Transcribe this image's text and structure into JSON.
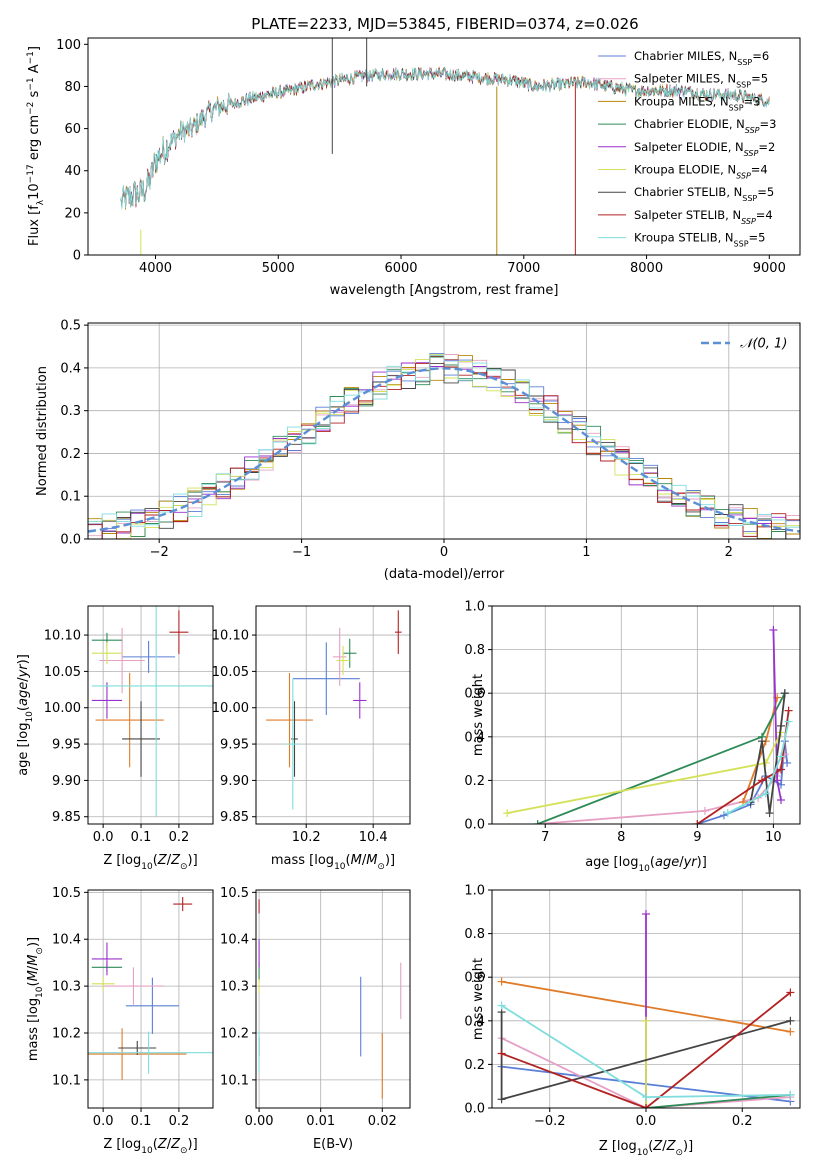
{
  "figure": {
    "title": "PLATE=2233, MJD=53845, FIBERID=0374, z=0.026"
  },
  "chart_data": [
    {
      "id": "spectrum",
      "type": "line",
      "title": "PLATE=2233, MJD=53845, FIBERID=0374, z=0.026",
      "xlabel": "wavelength [Angstrom, rest frame]",
      "ylabel": "Flux [f_λ 10^-17 erg cm^-2 s^-1 A^-1]",
      "xlim": [
        3450,
        9250
      ],
      "ylim": [
        0,
        103
      ],
      "xticks": [
        4000,
        5000,
        6000,
        7000,
        8000,
        9000
      ],
      "yticks": [
        0,
        20,
        40,
        60,
        80,
        100
      ],
      "grid": false,
      "legend_position": "top-right",
      "continuum_points": [
        [
          3720,
          25
        ],
        [
          3800,
          28
        ],
        [
          3900,
          30
        ],
        [
          3960,
          36
        ],
        [
          4000,
          45
        ],
        [
          4100,
          52
        ],
        [
          4200,
          58
        ],
        [
          4300,
          60
        ],
        [
          4400,
          66
        ],
        [
          4500,
          70
        ],
        [
          4700,
          73
        ],
        [
          4900,
          76
        ],
        [
          5100,
          78
        ],
        [
          5300,
          81
        ],
        [
          5500,
          83
        ],
        [
          5700,
          85
        ],
        [
          5900,
          86
        ],
        [
          6100,
          86
        ],
        [
          6300,
          86
        ],
        [
          6500,
          85
        ],
        [
          6700,
          84
        ],
        [
          6900,
          83
        ],
        [
          7100,
          80
        ],
        [
          7300,
          81
        ],
        [
          7500,
          82
        ],
        [
          7700,
          80
        ],
        [
          7900,
          78
        ],
        [
          8100,
          78
        ],
        [
          8300,
          78
        ],
        [
          8500,
          76
        ],
        [
          8700,
          76
        ],
        [
          8900,
          74
        ],
        [
          9000,
          73
        ]
      ],
      "series": [
        {
          "name": "Chabrier MILES, N_SSP=6",
          "color": "#5b7fd6"
        },
        {
          "name": "Salpeter MILES, N_SSP=5",
          "color": "#e6a0c4"
        },
        {
          "name": "Kroupa MILES, N_SSP=3",
          "color": "#b8860b"
        },
        {
          "name": "Chabrier ELODIE, N_SSP=3",
          "color": "#2e8b57"
        },
        {
          "name": "Salpeter ELODIE, N_SSP=2",
          "color": "#9932cc"
        },
        {
          "name": "Kroupa ELODIE, N_SSP=4",
          "color": "#d4e157"
        },
        {
          "name": "Chabrier STELIB, N_SSP=5",
          "color": "#444444"
        },
        {
          "name": "Salpeter STELIB, N_SSP=4",
          "color": "#b22222"
        },
        {
          "name": "Kroupa STELIB, N_SSP=5",
          "color": "#7fdddd"
        }
      ],
      "legend_labels": [
        {
          "base": "Chabrier MILES, N",
          "sub": "SSP",
          "tail": "=6"
        },
        {
          "base": "Salpeter MILES, N",
          "sub": "SSP",
          "tail": "=5"
        },
        {
          "base": "Kroupa MILES, N",
          "sub": "SSP",
          "tail": "=3"
        },
        {
          "base": "Chabrier ELODIE, N",
          "sub": "SSP",
          "tail": "=3"
        },
        {
          "base": "Salpeter ELODIE, N",
          "sub": "SSP",
          "tail": "=2"
        },
        {
          "base": "Kroupa ELODIE, N",
          "sub": "SSP",
          "tail": "=4"
        },
        {
          "base": "Chabrier STELIB, N",
          "sub": "SSP",
          "tail": "=5"
        },
        {
          "base": "Salpeter STELIB, N",
          "sub": "SSP",
          "tail": "=4"
        },
        {
          "base": "Kroupa STELIB, N",
          "sub": "SSP",
          "tail": "=5"
        }
      ],
      "spikes": [
        {
          "x": 3880,
          "y0": 0,
          "y1": 12,
          "color": "#d4e157"
        },
        {
          "x": 5440,
          "y0": 48,
          "y1": 103,
          "color": "#444444"
        },
        {
          "x": 5720,
          "y0": 80,
          "y1": 103,
          "color": "#444444"
        },
        {
          "x": 6780,
          "y0": 0,
          "y1": 80,
          "color": "#b8860b"
        },
        {
          "x": 7420,
          "y0": 0,
          "y1": 82,
          "color": "#b22222"
        }
      ]
    },
    {
      "id": "residuals",
      "type": "line",
      "xlabel": "(data-model)/error",
      "ylabel": "Normed distribution",
      "xlim": [
        -2.5,
        2.5
      ],
      "ylim": [
        0,
        0.505
      ],
      "xticks": [
        -2,
        -1,
        0,
        1,
        2
      ],
      "yticks": [
        0.0,
        0.1,
        0.2,
        0.3,
        0.4,
        0.5
      ],
      "grid": true,
      "legend_position": "top-right",
      "gaussian_label": "𝒩(0, 1)",
      "gaussian_color": "#5b8fd6",
      "bin_width": 0.1
    },
    {
      "id": "age_vs_Z",
      "type": "scatter",
      "xlabel": "Z [log10(Z/Z⊙)]",
      "ylabel": "age [log10(age/yr)]",
      "xlim": [
        -0.04,
        0.29
      ],
      "ylim": [
        9.84,
        10.14
      ],
      "xticks": [
        0.0,
        0.1,
        0.2
      ],
      "yticks": [
        9.85,
        9.9,
        9.95,
        10.0,
        10.05,
        10.1
      ],
      "grid": true,
      "points": [
        {
          "color": "#5b7fd6",
          "x": 0.12,
          "xerr": 0.07,
          "y": 10.07,
          "yerr": 0.022
        },
        {
          "color": "#e6a0c4",
          "x": 0.05,
          "xerr": 0.06,
          "y": 10.065,
          "yerr": 0.045
        },
        {
          "color": "#e07b29",
          "x": 0.07,
          "xerr": 0.09,
          "y": 9.983,
          "yerr": 0.065
        },
        {
          "color": "#2e8b57",
          "x": 0.01,
          "xerr": 0.04,
          "y": 10.093,
          "yerr": 0.01
        },
        {
          "color": "#9932cc",
          "x": 0.01,
          "xerr": 0.04,
          "y": 10.01,
          "yerr": 0.025
        },
        {
          "color": "#d4e157",
          "x": 0.01,
          "xerr": 0.04,
          "y": 10.075,
          "yerr": 0.015
        },
        {
          "color": "#444444",
          "x": 0.1,
          "xerr": 0.05,
          "y": 9.957,
          "yerr": 0.052
        },
        {
          "color": "#b22222",
          "x": 0.2,
          "xerr": 0.025,
          "y": 10.104,
          "yerr": 0.03
        },
        {
          "color": "#7fdddd",
          "x": 0.14,
          "xerr": 0.17,
          "y": 10.03,
          "yerr": 0.18
        }
      ]
    },
    {
      "id": "age_vs_mass",
      "type": "scatter",
      "xlabel": "mass [log10(M/M⊙)]",
      "ylabel": "",
      "xlim": [
        10.05,
        10.51
      ],
      "ylim": [
        9.84,
        10.14
      ],
      "xticks": [
        10.2,
        10.4
      ],
      "yticks": [
        9.85,
        9.9,
        9.95,
        10.0,
        10.05,
        10.1
      ],
      "grid": true,
      "points": [
        {
          "color": "#5b7fd6",
          "x": 10.26,
          "xerr": 0.1,
          "y": 10.04,
          "yerr": 0.05
        },
        {
          "color": "#e6a0c4",
          "x": 10.3,
          "xerr": 0.02,
          "y": 10.07,
          "yerr": 0.04
        },
        {
          "color": "#e07b29",
          "x": 10.15,
          "xerr": 0.07,
          "y": 9.983,
          "yerr": 0.065
        },
        {
          "color": "#2e8b57",
          "x": 10.33,
          "xerr": 0.02,
          "y": 10.075,
          "yerr": 0.02
        },
        {
          "color": "#9932cc",
          "x": 10.36,
          "xerr": 0.02,
          "y": 10.01,
          "yerr": 0.025
        },
        {
          "color": "#d4e157",
          "x": 10.31,
          "xerr": 0.02,
          "y": 10.065,
          "yerr": 0.02
        },
        {
          "color": "#444444",
          "x": 10.165,
          "xerr": 0.01,
          "y": 9.957,
          "yerr": 0.052
        },
        {
          "color": "#b22222",
          "x": 10.475,
          "xerr": 0.01,
          "y": 10.104,
          "yerr": 0.03
        },
        {
          "color": "#7fdddd",
          "x": 10.16,
          "xerr": 0.02,
          "y": 9.95,
          "yerr": 0.09
        }
      ]
    },
    {
      "id": "massweight_vs_age",
      "type": "line",
      "xlabel": "age [log10(age/yr)]",
      "ylabel": "mass weight",
      "xlim": [
        6.3,
        10.35
      ],
      "ylim": [
        0,
        1.0
      ],
      "xticks": [
        7,
        8,
        9,
        10
      ],
      "yticks": [
        0.0,
        0.2,
        0.4,
        0.6,
        0.8,
        1.0
      ],
      "grid": true,
      "series": [
        {
          "color": "#5b7fd6",
          "points": [
            [
              9.0,
              0.0
            ],
            [
              9.35,
              0.04
            ],
            [
              9.7,
              0.09
            ],
            [
              9.9,
              0.22
            ],
            [
              10.1,
              0.18
            ],
            [
              10.15,
              0.38
            ],
            [
              10.18,
              0.28
            ]
          ]
        },
        {
          "color": "#e6a0c4",
          "points": [
            [
              6.9,
              0.0
            ],
            [
              9.1,
              0.06
            ],
            [
              9.8,
              0.12
            ],
            [
              10.05,
              0.22
            ],
            [
              10.15,
              0.32
            ]
          ]
        },
        {
          "color": "#e07b29",
          "points": [
            [
              9.6,
              0.1
            ],
            [
              9.9,
              0.38
            ],
            [
              10.05,
              0.58
            ]
          ]
        },
        {
          "color": "#2e8b57",
          "points": [
            [
              6.9,
              0.0
            ],
            [
              9.85,
              0.4
            ],
            [
              10.15,
              0.6
            ]
          ]
        },
        {
          "color": "#9932cc",
          "points": [
            [
              10.0,
              0.89
            ],
            [
              10.05,
              0.2
            ],
            [
              10.1,
              0.11
            ]
          ]
        },
        {
          "color": "#d4e157",
          "points": [
            [
              6.5,
              0.05
            ],
            [
              9.9,
              0.28
            ],
            [
              10.1,
              0.42
            ]
          ]
        },
        {
          "color": "#444444",
          "points": [
            [
              9.7,
              0.1
            ],
            [
              9.85,
              0.38
            ],
            [
              9.95,
              0.05
            ],
            [
              10.1,
              0.45
            ],
            [
              10.15,
              0.6
            ]
          ]
        },
        {
          "color": "#b22222",
          "points": [
            [
              9.0,
              0.0
            ],
            [
              9.85,
              0.2
            ],
            [
              10.1,
              0.25
            ],
            [
              10.2,
              0.52
            ]
          ]
        },
        {
          "color": "#7fdddd",
          "points": [
            [
              9.4,
              0.05
            ],
            [
              9.9,
              0.14
            ],
            [
              10.1,
              0.31
            ],
            [
              10.2,
              0.47
            ]
          ]
        }
      ]
    },
    {
      "id": "mass_vs_Z",
      "type": "scatter",
      "xlabel": "Z [log10(Z/Z⊙)]",
      "ylabel": "mass [log10(M/M⊙)]",
      "xlim": [
        -0.04,
        0.29
      ],
      "ylim": [
        10.04,
        10.505
      ],
      "xticks": [
        0.0,
        0.1,
        0.2
      ],
      "yticks": [
        10.1,
        10.2,
        10.3,
        10.4,
        10.5
      ],
      "grid": true,
      "points": [
        {
          "color": "#5b7fd6",
          "x": 0.13,
          "xerr": 0.07,
          "y": 10.258,
          "yerr": 0.06
        },
        {
          "color": "#e6a0c4",
          "x": 0.08,
          "xerr": 0.08,
          "y": 10.3,
          "yerr": 0.04
        },
        {
          "color": "#e07b29",
          "x": 0.05,
          "xerr": 0.17,
          "y": 10.155,
          "yerr": 0.055
        },
        {
          "color": "#2e8b57",
          "x": 0.01,
          "xerr": 0.04,
          "y": 10.34,
          "yerr": 0.01
        },
        {
          "color": "#9932cc",
          "x": 0.01,
          "xerr": 0.04,
          "y": 10.358,
          "yerr": 0.035
        },
        {
          "color": "#d4e157",
          "x": 0.0,
          "xerr": 0.03,
          "y": 10.305,
          "yerr": 0.015
        },
        {
          "color": "#444444",
          "x": 0.09,
          "xerr": 0.05,
          "y": 10.168,
          "yerr": 0.015
        },
        {
          "color": "#b22222",
          "x": 0.21,
          "xerr": 0.025,
          "y": 10.475,
          "yerr": 0.015
        },
        {
          "color": "#7fdddd",
          "x": 0.12,
          "xerr": 0.17,
          "y": 10.158,
          "yerr": 0.045
        }
      ]
    },
    {
      "id": "mass_vs_ebv",
      "type": "scatter",
      "xlabel": "E(B-V)",
      "ylabel": "",
      "xlim": [
        -0.0005,
        0.0245
      ],
      "ylim": [
        10.04,
        10.505
      ],
      "xticks": [
        0.0,
        0.01,
        0.02
      ],
      "yticks": [
        10.1,
        10.2,
        10.3,
        10.4,
        10.5
      ],
      "grid": true,
      "points": [
        {
          "color": "#5b7fd6",
          "x": 0.0165,
          "xerr": 0.0,
          "y": 10.235,
          "yerr": 0.085
        },
        {
          "color": "#e6a0c4",
          "x": 0.023,
          "xerr": 0.0,
          "y": 10.29,
          "yerr": 0.06
        },
        {
          "color": "#e07b29",
          "x": 0.02,
          "xerr": 0.0,
          "y": 10.13,
          "yerr": 0.07
        },
        {
          "color": "#2e8b57",
          "x": 0.0,
          "xerr": 0.0,
          "y": 10.33,
          "yerr": 0.02
        },
        {
          "color": "#9932cc",
          "x": 0.0,
          "xerr": 0.0,
          "y": 10.37,
          "yerr": 0.03
        },
        {
          "color": "#d4e157",
          "x": 0.0,
          "xerr": 0.0,
          "y": 10.3,
          "yerr": 0.015
        },
        {
          "color": "#444444",
          "x": 0.0,
          "xerr": 0.0,
          "y": 10.17,
          "yerr": 0.02
        },
        {
          "color": "#b22222",
          "x": 0.0,
          "xerr": 0.0,
          "y": 10.47,
          "yerr": 0.015
        },
        {
          "color": "#7fdddd",
          "x": 0.0,
          "xerr": 0.0,
          "y": 10.16,
          "yerr": 0.045
        }
      ]
    },
    {
      "id": "massweight_vs_Z",
      "type": "line",
      "xlabel": "Z [log10(Z/Z⊙)]",
      "ylabel": "mass weight",
      "xlim": [
        -0.32,
        0.32
      ],
      "ylim": [
        0,
        1.0
      ],
      "xticks": [
        -0.2,
        0.0,
        0.2
      ],
      "yticks": [
        0.0,
        0.2,
        0.4,
        0.6,
        0.8,
        1.0
      ],
      "grid": true,
      "series": [
        {
          "color": "#5b7fd6",
          "points": [
            [
              -0.3,
              0.19
            ],
            [
              0.3,
              0.03
            ]
          ]
        },
        {
          "color": "#e6a0c4",
          "points": [
            [
              -0.3,
              0.32
            ],
            [
              0.0,
              0.0
            ],
            [
              0.3,
              0.05
            ]
          ]
        },
        {
          "color": "#e07b29",
          "points": [
            [
              -0.3,
              0.58
            ],
            [
              0.3,
              0.35
            ]
          ]
        },
        {
          "color": "#2e8b57",
          "points": [
            [
              0.0,
              0.0
            ],
            [
              0.3,
              0.06
            ]
          ]
        },
        {
          "color": "#9932cc",
          "points": [
            [
              0.0,
              0.89
            ],
            [
              0.0,
              0.0
            ]
          ]
        },
        {
          "color": "#d4e157",
          "points": [
            [
              0.0,
              0.4
            ],
            [
              0.0,
              0.0
            ]
          ]
        },
        {
          "color": "#444444",
          "points": [
            [
              -0.3,
              0.44
            ],
            [
              -0.3,
              0.04
            ],
            [
              0.3,
              0.4
            ]
          ]
        },
        {
          "color": "#b22222",
          "points": [
            [
              -0.3,
              0.25
            ],
            [
              0.0,
              0.0
            ],
            [
              0.3,
              0.53
            ]
          ]
        },
        {
          "color": "#7fdddd",
          "points": [
            [
              -0.3,
              0.47
            ],
            [
              0.0,
              0.05
            ],
            [
              0.3,
              0.06
            ]
          ]
        }
      ]
    }
  ]
}
